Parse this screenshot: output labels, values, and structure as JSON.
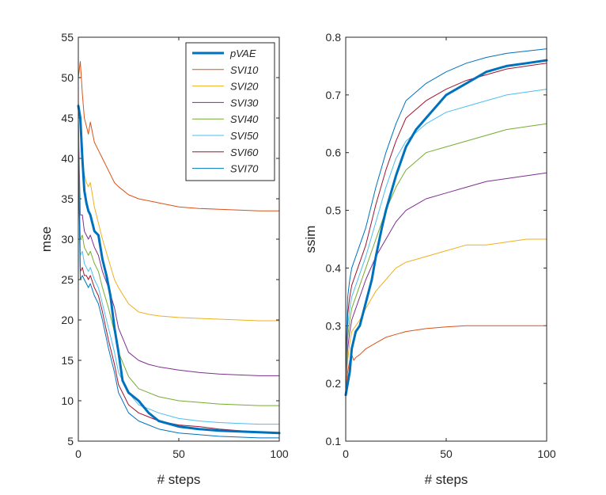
{
  "chart_data": [
    {
      "type": "line",
      "xlabel": "# steps",
      "ylabel": "mse",
      "xlim": [
        0,
        100
      ],
      "ylim": [
        5,
        55
      ],
      "xticks": [
        "0",
        "50",
        "100"
      ],
      "yticks": [
        "5",
        "10",
        "15",
        "20",
        "25",
        "30",
        "35",
        "40",
        "45",
        "50",
        "55"
      ],
      "legend_position": "top-right",
      "series": [
        {
          "name": "pVAE",
          "color": "#0072BD",
          "emphasis": true,
          "x": [
            0,
            1,
            2,
            3,
            4,
            5,
            6,
            8,
            10,
            12,
            14,
            16,
            18,
            20,
            22,
            25,
            30,
            35,
            40,
            50,
            60,
            70,
            80,
            90,
            100
          ],
          "y": [
            46.5,
            45,
            40,
            36,
            34.5,
            33.5,
            33,
            31,
            30.5,
            27.5,
            25.5,
            23,
            19,
            16,
            12.5,
            11,
            10,
            8.5,
            7.5,
            6.8,
            6.5,
            6.3,
            6.2,
            6.1,
            6.0
          ]
        },
        {
          "name": "SVI10",
          "color": "#D95319",
          "x": [
            0,
            1,
            2,
            3,
            4,
            5,
            6,
            8,
            10,
            12,
            15,
            18,
            20,
            25,
            30,
            40,
            50,
            60,
            70,
            80,
            90,
            100
          ],
          "y": [
            50,
            52,
            48,
            45,
            44,
            43,
            44.5,
            42,
            41,
            40,
            38.5,
            37,
            36.5,
            35.5,
            35,
            34.5,
            34,
            33.8,
            33.7,
            33.6,
            33.5,
            33.5
          ]
        },
        {
          "name": "SVI20",
          "color": "#EDB120",
          "x": [
            0,
            1,
            2,
            3,
            4,
            5,
            6,
            8,
            10,
            12,
            15,
            18,
            20,
            25,
            30,
            35,
            40,
            50,
            60,
            70,
            80,
            90,
            100
          ],
          "y": [
            47,
            44,
            40,
            38,
            37,
            36.5,
            37,
            34,
            32,
            30,
            27.5,
            25,
            24,
            22,
            21,
            20.7,
            20.5,
            20.3,
            20.2,
            20.1,
            20,
            19.9,
            19.9
          ]
        },
        {
          "name": "SVI30",
          "color": "#7E2F8E",
          "x": [
            0,
            1,
            2,
            3,
            4,
            5,
            6,
            8,
            10,
            12,
            15,
            18,
            20,
            25,
            30,
            35,
            40,
            50,
            60,
            70,
            80,
            90,
            100
          ],
          "y": [
            45,
            33,
            33,
            31,
            30.5,
            30,
            30.5,
            29,
            28,
            26,
            24,
            21.5,
            19,
            16,
            15,
            14.5,
            14.2,
            13.8,
            13.5,
            13.3,
            13.2,
            13.1,
            13.1
          ]
        },
        {
          "name": "SVI40",
          "color": "#77AC30",
          "x": [
            0,
            1,
            2,
            3,
            4,
            5,
            6,
            8,
            10,
            12,
            15,
            18,
            20,
            25,
            30,
            35,
            40,
            50,
            60,
            70,
            80,
            90,
            100
          ],
          "y": [
            44,
            30,
            30.5,
            29,
            28.5,
            28,
            28.5,
            27,
            26,
            24,
            21.5,
            18.5,
            16,
            13,
            11.5,
            11,
            10.5,
            10,
            9.8,
            9.6,
            9.5,
            9.4,
            9.4
          ]
        },
        {
          "name": "SVI50",
          "color": "#4DBEEE",
          "x": [
            0,
            1,
            2,
            3,
            4,
            5,
            6,
            8,
            10,
            12,
            15,
            18,
            20,
            25,
            30,
            35,
            40,
            50,
            60,
            70,
            80,
            90,
            100
          ],
          "y": [
            43,
            28,
            28.5,
            27,
            26.5,
            26,
            26.5,
            25,
            24,
            22,
            19,
            16,
            13.5,
            11,
            9.5,
            9,
            8.5,
            7.8,
            7.5,
            7.3,
            7.2,
            7.1,
            7.1
          ]
        },
        {
          "name": "SVI60",
          "color": "#A2142F",
          "x": [
            0,
            1,
            2,
            3,
            4,
            5,
            6,
            8,
            10,
            12,
            15,
            18,
            20,
            25,
            30,
            35,
            40,
            50,
            60,
            70,
            80,
            90,
            100
          ],
          "y": [
            42,
            26,
            26.5,
            25.5,
            25.5,
            25,
            25.5,
            24,
            23,
            21,
            17.5,
            14.5,
            12,
            9.5,
            8.5,
            8,
            7.5,
            7,
            6.8,
            6.5,
            6.3,
            6.1,
            6.0
          ]
        },
        {
          "name": "SVI70",
          "color": "#0072BD",
          "x": [
            0,
            1,
            2,
            3,
            4,
            5,
            6,
            8,
            10,
            12,
            15,
            18,
            20,
            25,
            30,
            35,
            40,
            50,
            60,
            70,
            80,
            90,
            100
          ],
          "y": [
            41,
            25,
            25.5,
            25,
            24.5,
            24,
            24.5,
            23,
            22,
            20,
            16.5,
            13.5,
            11,
            8.5,
            7.5,
            7,
            6.5,
            6.0,
            5.8,
            5.6,
            5.5,
            5.4,
            5.4
          ]
        }
      ],
      "legend": [
        "pVAE",
        "SVI10",
        "SVI20",
        "SVI30",
        "SVI40",
        "SVI50",
        "SVI60",
        "SVI70"
      ]
    },
    {
      "type": "line",
      "xlabel": "# steps",
      "ylabel": "ssim",
      "xlim": [
        0,
        100
      ],
      "ylim": [
        0.1,
        0.8
      ],
      "xticks": [
        "0",
        "50",
        "100"
      ],
      "yticks": [
        "0.1",
        "0.2",
        "0.3",
        "0.4",
        "0.5",
        "0.6",
        "0.7",
        "0.8"
      ],
      "series": [
        {
          "name": "pVAE",
          "color": "#0072BD",
          "emphasis": true,
          "x": [
            0,
            1,
            2,
            3,
            5,
            7,
            10,
            13,
            15,
            18,
            20,
            25,
            30,
            35,
            40,
            50,
            60,
            70,
            80,
            90,
            100
          ],
          "y": [
            0.18,
            0.2,
            0.22,
            0.26,
            0.29,
            0.3,
            0.34,
            0.38,
            0.42,
            0.47,
            0.5,
            0.56,
            0.61,
            0.64,
            0.66,
            0.7,
            0.72,
            0.74,
            0.75,
            0.755,
            0.76
          ]
        },
        {
          "name": "SVI10",
          "color": "#D95319",
          "x": [
            0,
            1,
            2,
            3,
            4,
            5,
            7,
            10,
            15,
            20,
            25,
            30,
            40,
            50,
            60,
            70,
            80,
            90,
            100
          ],
          "y": [
            0.18,
            0.22,
            0.24,
            0.25,
            0.24,
            0.245,
            0.25,
            0.26,
            0.27,
            0.28,
            0.285,
            0.29,
            0.295,
            0.298,
            0.3,
            0.3,
            0.3,
            0.3,
            0.3
          ]
        },
        {
          "name": "SVI20",
          "color": "#EDB120",
          "x": [
            0,
            1,
            2,
            3,
            5,
            7,
            10,
            15,
            20,
            25,
            30,
            40,
            50,
            60,
            70,
            80,
            90,
            100
          ],
          "y": [
            0.19,
            0.24,
            0.27,
            0.29,
            0.3,
            0.31,
            0.33,
            0.36,
            0.38,
            0.4,
            0.41,
            0.42,
            0.43,
            0.44,
            0.44,
            0.445,
            0.45,
            0.45
          ]
        },
        {
          "name": "SVI30",
          "color": "#7E2F8E",
          "x": [
            0,
            1,
            2,
            3,
            5,
            7,
            10,
            15,
            20,
            25,
            30,
            40,
            50,
            60,
            70,
            80,
            90,
            100
          ],
          "y": [
            0.19,
            0.26,
            0.29,
            0.31,
            0.33,
            0.35,
            0.38,
            0.42,
            0.45,
            0.48,
            0.5,
            0.52,
            0.53,
            0.54,
            0.55,
            0.555,
            0.56,
            0.565
          ]
        },
        {
          "name": "SVI40",
          "color": "#77AC30",
          "x": [
            0,
            1,
            2,
            3,
            5,
            7,
            10,
            15,
            20,
            25,
            30,
            40,
            50,
            60,
            70,
            80,
            90,
            100
          ],
          "y": [
            0.2,
            0.28,
            0.31,
            0.33,
            0.35,
            0.37,
            0.4,
            0.45,
            0.5,
            0.54,
            0.57,
            0.6,
            0.61,
            0.62,
            0.63,
            0.64,
            0.645,
            0.65
          ]
        },
        {
          "name": "SVI50",
          "color": "#4DBEEE",
          "x": [
            0,
            1,
            2,
            3,
            5,
            7,
            10,
            15,
            20,
            25,
            30,
            40,
            50,
            60,
            70,
            80,
            90,
            100
          ],
          "y": [
            0.21,
            0.3,
            0.33,
            0.35,
            0.37,
            0.39,
            0.42,
            0.48,
            0.54,
            0.59,
            0.62,
            0.65,
            0.67,
            0.68,
            0.69,
            0.7,
            0.705,
            0.71
          ]
        },
        {
          "name": "SVI60",
          "color": "#A2142F",
          "x": [
            0,
            1,
            2,
            3,
            5,
            7,
            10,
            15,
            20,
            25,
            30,
            40,
            50,
            60,
            70,
            80,
            90,
            100
          ],
          "y": [
            0.22,
            0.32,
            0.35,
            0.37,
            0.39,
            0.41,
            0.44,
            0.51,
            0.57,
            0.62,
            0.66,
            0.69,
            0.71,
            0.725,
            0.735,
            0.745,
            0.75,
            0.755
          ]
        },
        {
          "name": "SVI70",
          "color": "#0072BD",
          "x": [
            0,
            1,
            2,
            3,
            5,
            7,
            10,
            15,
            20,
            25,
            30,
            40,
            50,
            60,
            70,
            80,
            90,
            100
          ],
          "y": [
            0.23,
            0.35,
            0.38,
            0.4,
            0.42,
            0.44,
            0.47,
            0.54,
            0.6,
            0.65,
            0.69,
            0.72,
            0.74,
            0.755,
            0.765,
            0.772,
            0.776,
            0.78
          ]
        }
      ]
    }
  ]
}
